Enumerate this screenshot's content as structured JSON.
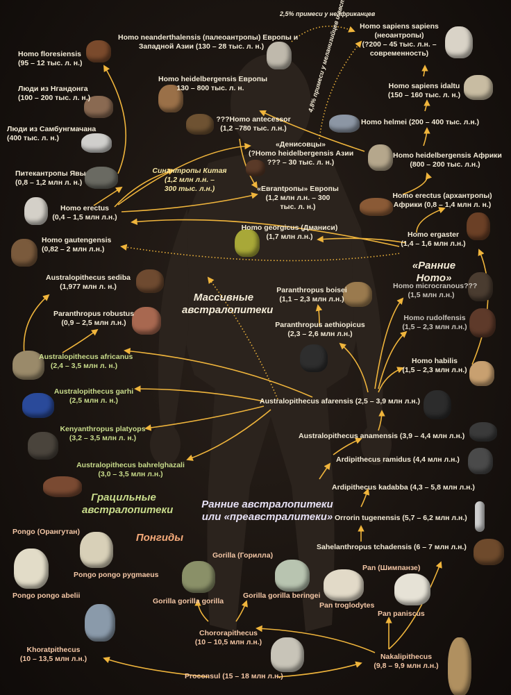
{
  "colors": {
    "arrow": "#f0b53c",
    "text": "#f4ecd8",
    "green": "#c9dc8c",
    "pink": "#f4a979"
  },
  "headings": {
    "massive": "Массивные австралопитеки",
    "gracile": "Грацильные австралопитеки",
    "pongids": "Понгиды",
    "early_austr": "Ранние австралопитеки или «преавстралитеки»",
    "early_homo": "«Ранние Homo»"
  },
  "notes": {
    "admix_africa": "2,5% примеси у неафриканцев",
    "admix_melan": "4,8% примеси у меланизийцев и австралийцев"
  },
  "taxa": {
    "sapiens_sapiens": {
      "name": "Homo sapiens sapiens",
      "l2": "(неоантропы)",
      "l3": "(?200 – 45 тыс. л.н. –",
      "l4": "современность)"
    },
    "neanderthal": {
      "name": "Homo neanderthalensis (палеоантропы) Европы и",
      "l2": "Западной Азии (130 – 28 тыс. л. н.)"
    },
    "floresiensis": {
      "name": "Homo floresiensis",
      "l2": "(95 – 12 тыс. л. н.)"
    },
    "ngandong": {
      "name": "Люди из Нгандонга",
      "l2": "(100 – 200 тыс. л. н.)"
    },
    "sambungmacan": {
      "name": "Люди из Самбунгмачана",
      "l2": "(400 тыс. л. н.)"
    },
    "java": {
      "name": "Питекантропы Явы",
      "l2": "(0,8 – 1,2 млн л. н.)"
    },
    "heidelbergensis_eu": {
      "name": "Homo heidelbergensis Европы",
      "l2": "130 – 800 тыс. л. н."
    },
    "antecessor": {
      "name": "???Homo antecessor",
      "l2": "(1,2 –780 тыс. л.н.)"
    },
    "denisovans": {
      "name": "«Денисовцы»",
      "l2": "(?Homo heidelbergensis Азии",
      "l3": "??? – 30 тыс. л. н.)"
    },
    "sinanthropus": {
      "name": "Синантропы Китая",
      "l2": "(1,2 млн л.н. –",
      "l3": "300 тыс. л.н.)"
    },
    "eurantropy": {
      "name": "«Евrantропы» Европы",
      "l2": "(1,2 млн л.н. – 300",
      "l3": "тыс. л. н.)"
    },
    "erectus": {
      "name": "Homo erectus",
      "l2": "(0,4 – 1,5 млн л.н.)"
    },
    "idaltu": {
      "name": "Homo sapiens idaltu",
      "l2": "(150 – 160 тыс. л. н.)"
    },
    "helmei": {
      "name": "Homo helmei (200 – 400 тыс. л.н.)"
    },
    "heidelbergensis_af": {
      "name": "Homo heidelbergensis Африки",
      "l2": "(800 – 200 тыс. л.н.)"
    },
    "erectus_af": {
      "name": "Homo erectus (архантропы)",
      "l2": "Африки (0,8 – 1,4 млн л. н.)"
    },
    "georgicus": {
      "name": "Homo georgicus (Дманиси)",
      "l2": "(1,7 млн л.н.)"
    },
    "ergaster": {
      "name": "Homo ergaster",
      "l2": "(1,4 – 1,6 млн л.н.)"
    },
    "gautengensis": {
      "name": "Homo gautengensis",
      "l2": "(0,82 – 2 млн л.н.)"
    },
    "sediba": {
      "name": "Australopithecus sediba",
      "l2": "(1,977 млн л. н.)"
    },
    "robustus": {
      "name": "Paranthropus robustus",
      "l2": "(0,9 – 2,5 млн л.н.)"
    },
    "boisei": {
      "name": "Paranthropus boisei",
      "l2": "(1,1 – 2,3 млн л.н.)"
    },
    "aethiopicus": {
      "name": "Paranthropus aethiopicus",
      "l2": "(2,3 – 2,6 млн л.н.)"
    },
    "microcranous": {
      "name": "Homo microcranous???",
      "l2": "(1,5 млн л.н.)"
    },
    "rudolfensis": {
      "name": "Homo rudolfensis",
      "l2": "(1,5 – 2,3 млн л.н.)"
    },
    "habilis": {
      "name": "Homo habilis",
      "l2": "(1,5 – 2,3 млн л.н.)"
    },
    "africanus": {
      "name": "Australopithecus africanus",
      "l2": "(2,4 – 3,5 млн л. н.)"
    },
    "garhi": {
      "name": "Australopithecus garhi",
      "l2": "(2,5 млн л. н.)"
    },
    "afarensis": {
      "name": "Australopithecus afarensis (2,5 – 3,9 млн л.н.)"
    },
    "platyops": {
      "name": "Kenyanthropus platyops",
      "l2": "(3,2 – 3,5 млн л. н.)"
    },
    "bahrelghazali": {
      "name": "Australopithecus bahrelghazali",
      "l2": "(3,0 – 3,5 млн л.н.)"
    },
    "anamensis": {
      "name": "Australopithecus anamensis (3,9 – 4,4 млн л.н.)"
    },
    "ramidus": {
      "name": "Ardipithecus ramidus (4,4 млн л.н.)"
    },
    "kadabba": {
      "name": "Ardipithecus kadabba (4,3 – 5,8 млн л.н.)"
    },
    "orrorin": {
      "name": "Orrorin tugenensis (5,7 – 6,2 млн л.н.)"
    },
    "sahelanthropus": {
      "name": "Sahelanthropus tchadensis (6 – 7 млн л.н.)"
    },
    "pongo": {
      "name": "Pongo (Орангутан)"
    },
    "pongo_pygmaeus": {
      "name": "Pongo pongo pygmaeus"
    },
    "pongo_abelii": {
      "name": "Pongo pongo abelii"
    },
    "gorilla": {
      "name": "Gorilla (Горилла)"
    },
    "gorilla_gorilla": {
      "name": "Gorilla gorilla gorilla"
    },
    "gorilla_beringei": {
      "name": "Gorilla gorilla beringei"
    },
    "pan": {
      "name": "Pan (Шимпанзе)"
    },
    "pan_troglodytes": {
      "name": "Pan troglodytes"
    },
    "pan_paniscus": {
      "name": "Pan paniscus"
    },
    "khoratpithecus": {
      "name": "Khoratpithecus",
      "l2": "(10 – 13,5 млн л.н.)"
    },
    "chororapithecus": {
      "name": "Chororapithecus",
      "l2": "(10 – 10,5 млн л.н.)"
    },
    "nakalipithecus": {
      "name": "Nakalipithecus",
      "l2": "(9,8 – 9,9 млн л.н.)"
    },
    "proconsul": {
      "name": "Proconsul (15 – 18 млн л.н.)"
    }
  }
}
